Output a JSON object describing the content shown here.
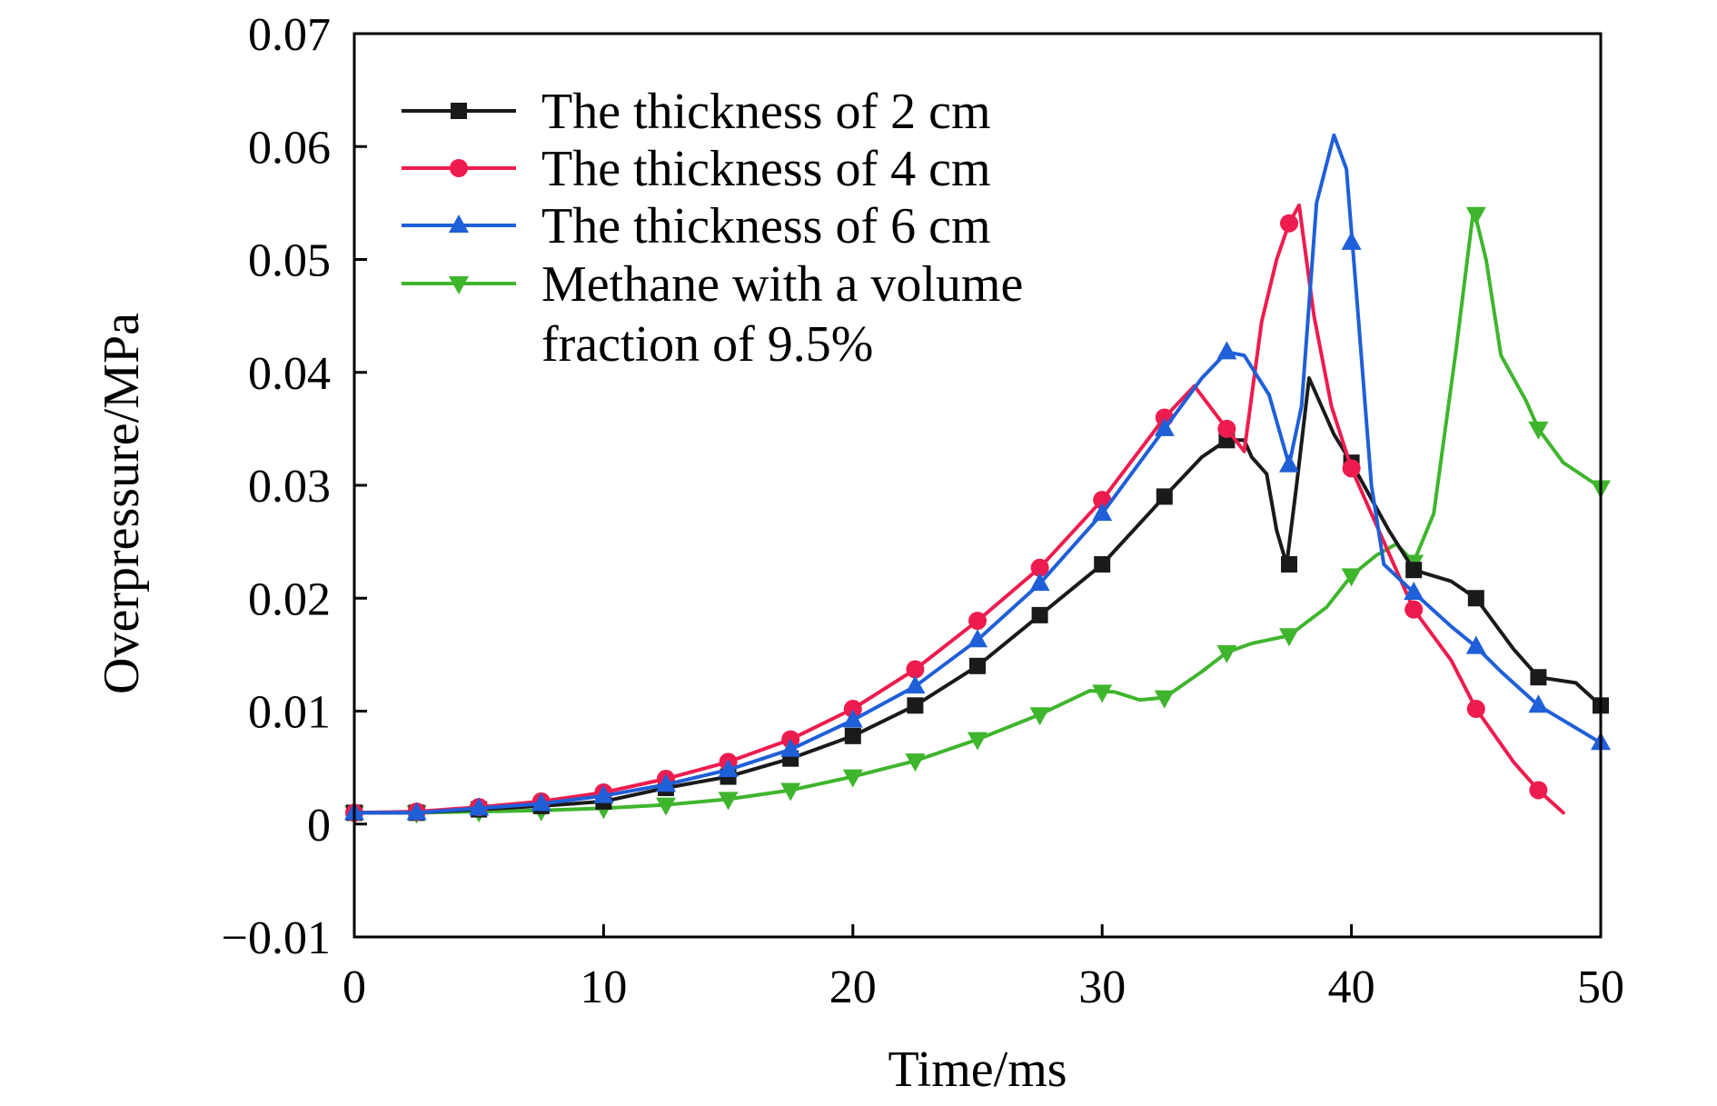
{
  "chart_data": {
    "type": "line",
    "title": "",
    "xlabel": "Time/ms",
    "ylabel": "Overpressure/MPa",
    "xlim": [
      0,
      50
    ],
    "ylim": [
      -0.01,
      0.07
    ],
    "xticks": [
      0,
      10,
      20,
      30,
      40,
      50
    ],
    "xtick_labels": [
      "0",
      "10",
      "20",
      "30",
      "40",
      "50"
    ],
    "yticks": [
      -0.01,
      0,
      0.01,
      0.02,
      0.03,
      0.04,
      0.05,
      0.06,
      0.07
    ],
    "ytick_labels": [
      "−0.01",
      "0",
      "0.01",
      "0.02",
      "0.03",
      "0.04",
      "0.05",
      "0.06",
      "0.07"
    ],
    "grid": false,
    "legend_position": "top-left",
    "series": [
      {
        "name": "The thickness of 2 cm",
        "color": "#1a1a1a",
        "marker": "square",
        "curve": [
          [
            0,
            0.001
          ],
          [
            2.5,
            0.001
          ],
          [
            5,
            0.0013
          ],
          [
            7.5,
            0.0016
          ],
          [
            10,
            0.002
          ],
          [
            12.5,
            0.0032
          ],
          [
            15,
            0.0042
          ],
          [
            17.5,
            0.0058
          ],
          [
            20,
            0.0078
          ],
          [
            22.5,
            0.0105
          ],
          [
            25,
            0.014
          ],
          [
            27.5,
            0.0185
          ],
          [
            30,
            0.023
          ],
          [
            32.5,
            0.029
          ],
          [
            34,
            0.0325
          ],
          [
            35,
            0.034
          ],
          [
            35.7,
            0.034
          ],
          [
            36,
            0.0325
          ],
          [
            36.6,
            0.031
          ],
          [
            37,
            0.026
          ],
          [
            37.4,
            0.023
          ],
          [
            37.8,
            0.03
          ],
          [
            38.3,
            0.0395
          ],
          [
            38.8,
            0.037
          ],
          [
            39.3,
            0.0345
          ],
          [
            40,
            0.032
          ],
          [
            41.5,
            0.026
          ],
          [
            42.5,
            0.0225
          ],
          [
            44,
            0.0215
          ],
          [
            45,
            0.02
          ],
          [
            46.5,
            0.0155
          ],
          [
            47.5,
            0.013
          ],
          [
            49,
            0.0125
          ],
          [
            50,
            0.0105
          ]
        ],
        "markers": [
          [
            0,
            0.001
          ],
          [
            2.5,
            0.001
          ],
          [
            5,
            0.0013
          ],
          [
            7.5,
            0.0016
          ],
          [
            10,
            0.002
          ],
          [
            12.5,
            0.0032
          ],
          [
            15,
            0.0042
          ],
          [
            17.5,
            0.0058
          ],
          [
            20,
            0.0078
          ],
          [
            22.5,
            0.0105
          ],
          [
            25,
            0.014
          ],
          [
            27.5,
            0.0185
          ],
          [
            30,
            0.023
          ],
          [
            32.5,
            0.029
          ],
          [
            35,
            0.034
          ],
          [
            37.5,
            0.023
          ],
          [
            40,
            0.032
          ],
          [
            42.5,
            0.0225
          ],
          [
            45,
            0.02
          ],
          [
            47.5,
            0.013
          ],
          [
            50,
            0.0105
          ]
        ]
      },
      {
        "name": "The thickness of 4 cm",
        "color": "#ee1c4e",
        "marker": "circle",
        "curve": [
          [
            0,
            0.001
          ],
          [
            2.5,
            0.0011
          ],
          [
            5,
            0.0015
          ],
          [
            7.5,
            0.002
          ],
          [
            10,
            0.0028
          ],
          [
            12.5,
            0.004
          ],
          [
            15,
            0.0055
          ],
          [
            17.5,
            0.0075
          ],
          [
            20,
            0.0102
          ],
          [
            22.5,
            0.0137
          ],
          [
            25,
            0.018
          ],
          [
            27.5,
            0.0227
          ],
          [
            30,
            0.0287
          ],
          [
            32.5,
            0.036
          ],
          [
            33.7,
            0.0388
          ],
          [
            35,
            0.035
          ],
          [
            35.7,
            0.033
          ],
          [
            36.4,
            0.0445
          ],
          [
            37,
            0.05
          ],
          [
            37.5,
            0.0532
          ],
          [
            37.9,
            0.0548
          ],
          [
            38.5,
            0.045
          ],
          [
            39.2,
            0.037
          ],
          [
            40,
            0.0315
          ],
          [
            41,
            0.0265
          ],
          [
            42.5,
            0.019
          ],
          [
            44,
            0.0145
          ],
          [
            45,
            0.0102
          ],
          [
            46.5,
            0.0055
          ],
          [
            47.5,
            0.003
          ],
          [
            48.5,
            0.001
          ]
        ],
        "markers": [
          [
            0,
            0.001
          ],
          [
            2.5,
            0.0011
          ],
          [
            5,
            0.0015
          ],
          [
            7.5,
            0.002
          ],
          [
            10,
            0.0028
          ],
          [
            12.5,
            0.004
          ],
          [
            15,
            0.0055
          ],
          [
            17.5,
            0.0075
          ],
          [
            20,
            0.0102
          ],
          [
            22.5,
            0.0137
          ],
          [
            25,
            0.018
          ],
          [
            27.5,
            0.0227
          ],
          [
            30,
            0.0287
          ],
          [
            32.5,
            0.036
          ],
          [
            35,
            0.035
          ],
          [
            37.5,
            0.0532
          ],
          [
            40,
            0.0315
          ],
          [
            42.5,
            0.019
          ],
          [
            45,
            0.0102
          ],
          [
            47.5,
            0.003
          ]
        ]
      },
      {
        "name": "The thickness of 6 cm",
        "color": "#1f5fd8",
        "marker": "triangle-up",
        "curve": [
          [
            0,
            0.001
          ],
          [
            2.5,
            0.001
          ],
          [
            5,
            0.0014
          ],
          [
            7.5,
            0.0018
          ],
          [
            10,
            0.0025
          ],
          [
            12.5,
            0.0035
          ],
          [
            15,
            0.0048
          ],
          [
            17.5,
            0.0066
          ],
          [
            20,
            0.0092
          ],
          [
            22.5,
            0.0122
          ],
          [
            25,
            0.0163
          ],
          [
            27.5,
            0.0213
          ],
          [
            30,
            0.0275
          ],
          [
            32.5,
            0.035
          ],
          [
            34,
            0.0395
          ],
          [
            35,
            0.0418
          ],
          [
            35.7,
            0.0415
          ],
          [
            36.7,
            0.038
          ],
          [
            37.5,
            0.0318
          ],
          [
            38,
            0.037
          ],
          [
            38.6,
            0.055
          ],
          [
            39.3,
            0.061
          ],
          [
            39.8,
            0.058
          ],
          [
            40.2,
            0.047
          ],
          [
            40.8,
            0.03
          ],
          [
            41.3,
            0.023
          ],
          [
            42.5,
            0.0205
          ],
          [
            44,
            0.0175
          ],
          [
            45,
            0.0157
          ],
          [
            46,
            0.0135
          ],
          [
            47.5,
            0.0105
          ],
          [
            50,
            0.0072
          ]
        ],
        "markers": [
          [
            0,
            0.001
          ],
          [
            2.5,
            0.001
          ],
          [
            5,
            0.0014
          ],
          [
            7.5,
            0.0018
          ],
          [
            10,
            0.0025
          ],
          [
            12.5,
            0.0035
          ],
          [
            15,
            0.0048
          ],
          [
            17.5,
            0.0066
          ],
          [
            20,
            0.0092
          ],
          [
            22.5,
            0.0122
          ],
          [
            25,
            0.0163
          ],
          [
            27.5,
            0.0213
          ],
          [
            30,
            0.0275
          ],
          [
            32.5,
            0.035
          ],
          [
            35,
            0.0418
          ],
          [
            37.5,
            0.0318
          ],
          [
            40,
            0.0515
          ],
          [
            42.5,
            0.0205
          ],
          [
            45,
            0.0157
          ],
          [
            47.5,
            0.0105
          ],
          [
            50,
            0.0072
          ]
        ]
      },
      {
        "name": "Methane with a volume fraction of 9.5%",
        "legend_lines": [
          "Methane with a volume",
          "fraction of 9.5%"
        ],
        "color": "#3fb52d",
        "marker": "triangle-down",
        "curve": [
          [
            0,
            0.001
          ],
          [
            2.5,
            0.001
          ],
          [
            5,
            0.0011
          ],
          [
            7.5,
            0.0012
          ],
          [
            10,
            0.0014
          ],
          [
            12.5,
            0.0017
          ],
          [
            15,
            0.0022
          ],
          [
            17.5,
            0.003
          ],
          [
            20,
            0.0042
          ],
          [
            22.5,
            0.0056
          ],
          [
            25,
            0.0075
          ],
          [
            27.5,
            0.0097
          ],
          [
            29.5,
            0.0118
          ],
          [
            30.5,
            0.0117
          ],
          [
            31.5,
            0.011
          ],
          [
            32.5,
            0.0112
          ],
          [
            34,
            0.0135
          ],
          [
            35,
            0.0152
          ],
          [
            36,
            0.016
          ],
          [
            37.5,
            0.0167
          ],
          [
            39,
            0.0192
          ],
          [
            40,
            0.022
          ],
          [
            41,
            0.0238
          ],
          [
            41.8,
            0.0248
          ],
          [
            42.5,
            0.0232
          ],
          [
            43.3,
            0.0275
          ],
          [
            44.2,
            0.042
          ],
          [
            44.9,
            0.0545
          ],
          [
            45.4,
            0.05
          ],
          [
            46,
            0.0415
          ],
          [
            47,
            0.0375
          ],
          [
            47.5,
            0.035
          ],
          [
            48.5,
            0.032
          ],
          [
            50,
            0.0298
          ]
        ],
        "markers": [
          [
            0,
            0.001
          ],
          [
            2.5,
            0.001
          ],
          [
            5,
            0.0011
          ],
          [
            7.5,
            0.0012
          ],
          [
            10,
            0.0014
          ],
          [
            12.5,
            0.0017
          ],
          [
            15,
            0.0022
          ],
          [
            17.5,
            0.003
          ],
          [
            20,
            0.0042
          ],
          [
            22.5,
            0.0056
          ],
          [
            25,
            0.0075
          ],
          [
            27.5,
            0.0097
          ],
          [
            30,
            0.0117
          ],
          [
            32.5,
            0.0112
          ],
          [
            35,
            0.0152
          ],
          [
            37.5,
            0.0167
          ],
          [
            40,
            0.022
          ],
          [
            42.5,
            0.0232
          ],
          [
            45,
            0.054
          ],
          [
            47.5,
            0.035
          ],
          [
            50,
            0.0298
          ]
        ]
      }
    ]
  }
}
